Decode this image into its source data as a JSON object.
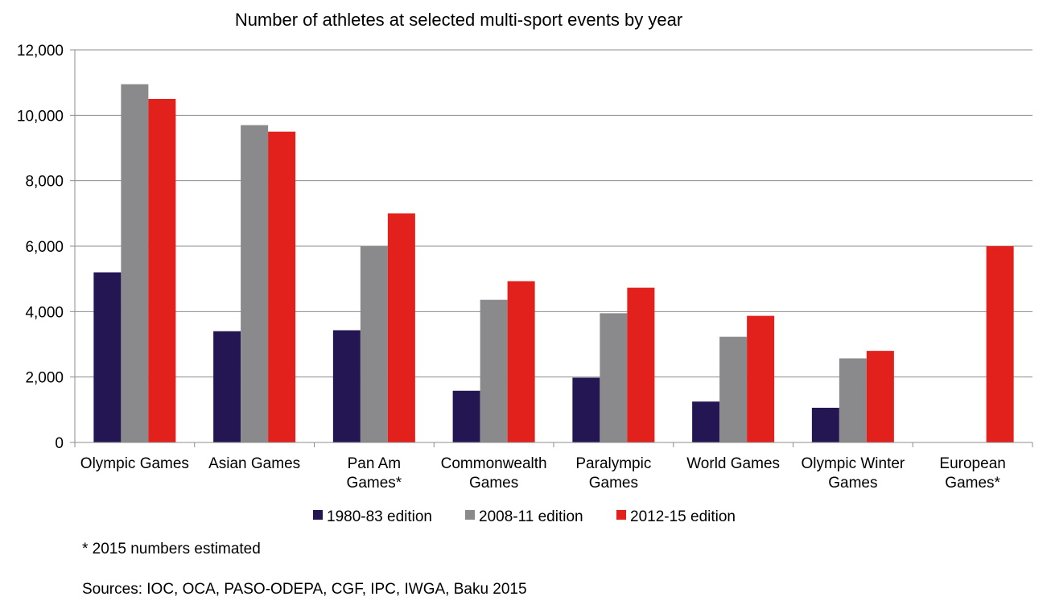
{
  "chart_data": {
    "type": "bar",
    "title": "Number of athletes at selected multi-sport events by year",
    "categories": [
      [
        "Olympic Games"
      ],
      [
        "Asian Games"
      ],
      [
        "Pan Am",
        "Games*"
      ],
      [
        "Commonwealth",
        "Games"
      ],
      [
        "Paralympic",
        "Games"
      ],
      [
        "World Games"
      ],
      [
        "Olympic Winter",
        "Games"
      ],
      [
        "European",
        "Games*"
      ]
    ],
    "series": [
      {
        "name": "1980-83 edition",
        "color": "#241653",
        "values": [
          5200,
          3400,
          3430,
          1580,
          1980,
          1250,
          1060,
          null
        ]
      },
      {
        "name": "2008-11 edition",
        "color": "#8a8a8c",
        "values": [
          10950,
          9700,
          6000,
          4360,
          3950,
          3230,
          2570,
          null
        ]
      },
      {
        "name": "2012-15 edition",
        "color": "#e2201c",
        "values": [
          10500,
          9500,
          7000,
          4930,
          4730,
          3870,
          2800,
          6000
        ]
      }
    ],
    "ylim": [
      0,
      12000
    ],
    "yticks": [
      0,
      2000,
      4000,
      6000,
      8000,
      10000,
      12000
    ],
    "ytick_labels": [
      "0",
      "2,000",
      "4,000",
      "6,000",
      "8,000",
      "10,000",
      "12,000"
    ],
    "xlabel": "",
    "ylabel": "",
    "grid": true,
    "legend_position": "bottom"
  },
  "notes": {
    "footnote": "* 2015 numbers estimated",
    "sources": "Sources: IOC, OCA, PASO-ODEPA, CGF, IPC, IWGA, Baku 2015"
  }
}
